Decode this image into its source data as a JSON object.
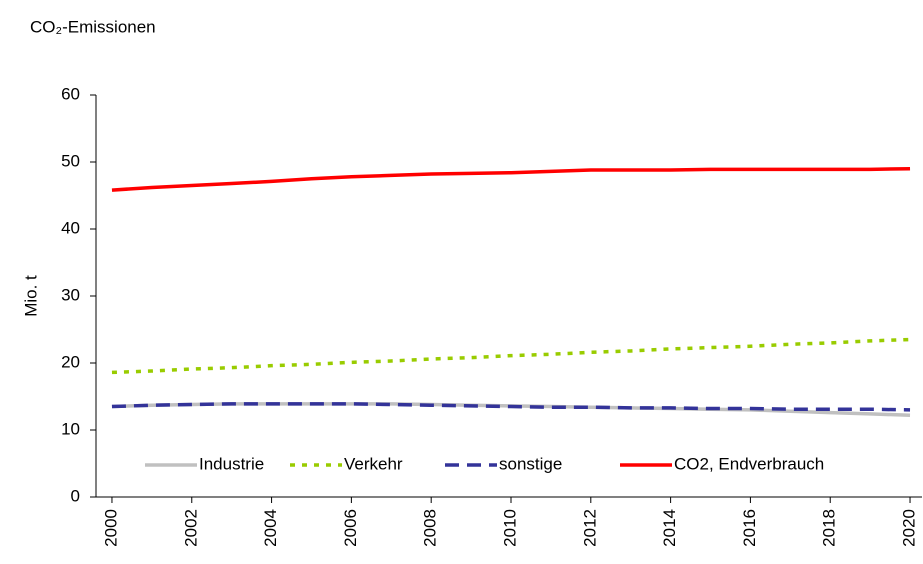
{
  "chart_data": {
    "type": "line",
    "title": "CO₂-Emissionen",
    "y_label": "Mio. t",
    "x": [
      2000,
      2001,
      2002,
      2003,
      2004,
      2005,
      2006,
      2007,
      2008,
      2009,
      2010,
      2011,
      2012,
      2013,
      2014,
      2015,
      2016,
      2017,
      2018,
      2019,
      2020
    ],
    "xlim": [
      1999.6,
      2020.3
    ],
    "xticks": [
      2000,
      2002,
      2004,
      2006,
      2008,
      2010,
      2012,
      2014,
      2016,
      2018,
      2020
    ],
    "ylim": [
      0,
      60
    ],
    "yticks": [
      0,
      10,
      20,
      30,
      40,
      50,
      60
    ],
    "grid": false,
    "series": [
      {
        "name": "Industrie",
        "color": "#c0c0c0",
        "style": "solid",
        "values": [
          13.5,
          13.7,
          13.8,
          13.9,
          13.9,
          13.9,
          13.9,
          13.9,
          13.8,
          13.7,
          13.6,
          13.5,
          13.4,
          13.3,
          13.2,
          13.1,
          13.0,
          12.8,
          12.6,
          12.4,
          12.2
        ]
      },
      {
        "name": "Verkehr",
        "color": "#99cc00",
        "style": "dotted",
        "values": [
          18.6,
          18.8,
          19.1,
          19.3,
          19.6,
          19.8,
          20.1,
          20.3,
          20.6,
          20.8,
          21.1,
          21.3,
          21.6,
          21.8,
          22.1,
          22.3,
          22.5,
          22.8,
          23.0,
          23.3,
          23.5
        ]
      },
      {
        "name": "sonstige",
        "color": "#333399",
        "style": "dashed",
        "values": [
          13.5,
          13.7,
          13.8,
          13.9,
          13.9,
          13.9,
          13.9,
          13.8,
          13.7,
          13.6,
          13.5,
          13.4,
          13.4,
          13.3,
          13.3,
          13.2,
          13.2,
          13.1,
          13.1,
          13.1,
          13.0
        ]
      },
      {
        "name": "CO2, Endverbrauch",
        "color": "#ff0000",
        "style": "solid",
        "values": [
          45.8,
          46.2,
          46.5,
          46.8,
          47.1,
          47.5,
          47.8,
          48.0,
          48.2,
          48.3,
          48.4,
          48.6,
          48.8,
          48.8,
          48.8,
          48.9,
          48.9,
          48.9,
          48.9,
          48.9,
          49.0
        ]
      }
    ]
  }
}
